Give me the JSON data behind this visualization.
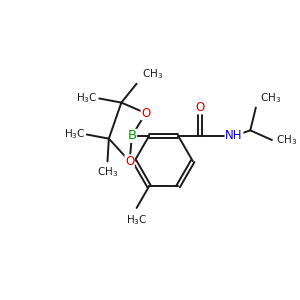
{
  "bg_color": "#ffffff",
  "bond_color": "#1a1a1a",
  "B_color": "#009900",
  "N_color": "#0000cc",
  "O_color": "#cc0000",
  "line_width": 1.4,
  "font_size": 8.5,
  "fig_size": [
    3.0,
    3.0
  ],
  "dpi": 100,
  "xlim": [
    0,
    10
  ],
  "ylim": [
    0,
    10
  ]
}
